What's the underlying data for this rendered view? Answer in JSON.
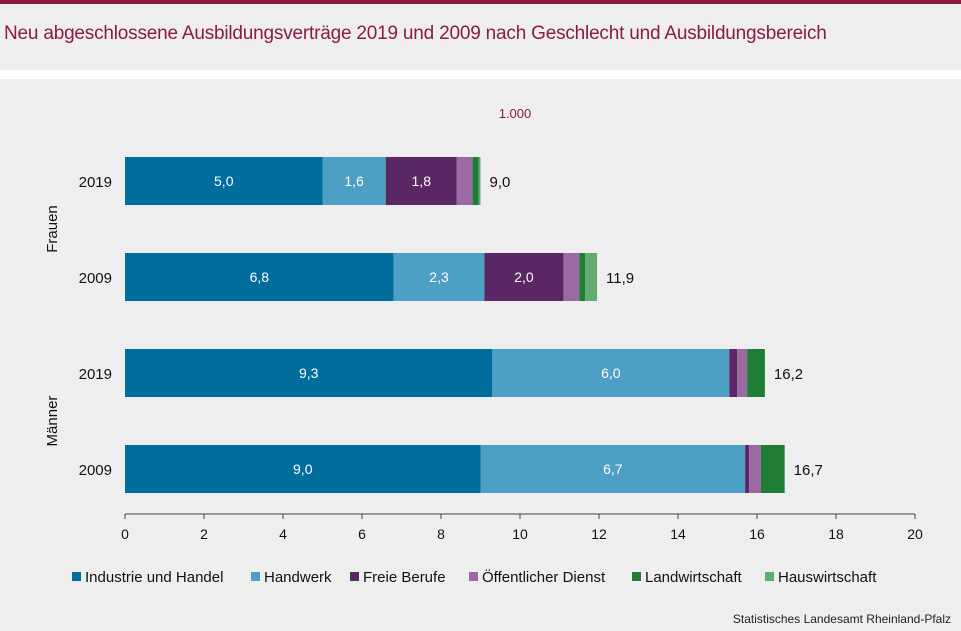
{
  "chart_data": {
    "type": "bar",
    "orientation": "horizontal",
    "stacked": true,
    "title": "Neu abgeschlossene Ausbildungsverträge 2019 und 2009 nach Geschlecht und Ausbildungsbereich",
    "unit_label": "1.000",
    "groups": [
      {
        "label": "Frauen",
        "rows": [
          {
            "label": "2019",
            "total_label": "9,0",
            "values": [
              5.0,
              1.6,
              1.8,
              0.4,
              0.15,
              0.05
            ],
            "value_labels": [
              "5,0",
              "1,6",
              "1,8",
              "",
              "",
              ""
            ]
          },
          {
            "label": "2009",
            "total_label": "11,9",
            "values": [
              6.8,
              2.3,
              2.0,
              0.4,
              0.15,
              0.3
            ],
            "value_labels": [
              "6,8",
              "2,3",
              "2,0",
              "",
              "",
              ""
            ]
          }
        ]
      },
      {
        "label": "Männer",
        "rows": [
          {
            "label": "2019",
            "total_label": "16,2",
            "values": [
              9.3,
              6.0,
              0.2,
              0.25,
              0.45,
              0.0
            ],
            "value_labels": [
              "9,3",
              "6,0",
              "",
              "",
              "",
              ""
            ]
          },
          {
            "label": "2009",
            "total_label": "16,7",
            "values": [
              9.0,
              6.7,
              0.1,
              0.3,
              0.6,
              0.0
            ],
            "value_labels": [
              "9,0",
              "6,7",
              "",
              "",
              "",
              ""
            ]
          }
        ]
      }
    ],
    "series": [
      {
        "name": "Industrie und Handel",
        "color": "#006d9c"
      },
      {
        "name": "Handwerk",
        "color": "#4da0c3"
      },
      {
        "name": "Freie Berufe",
        "color": "#5b2664"
      },
      {
        "name": "Öffentlicher Dienst",
        "color": "#9c6aa2"
      },
      {
        "name": "Landwirtschaft",
        "color": "#1f7d36"
      },
      {
        "name": "Hauswirtschaft",
        "color": "#63ab71"
      }
    ],
    "xlim": [
      0,
      20
    ],
    "xticks": [
      0,
      2,
      4,
      6,
      8,
      10,
      12,
      14,
      16,
      18,
      20
    ],
    "grid": false,
    "legend_position": "bottom"
  },
  "source": "Statistisches Landesamt Rheinland-Pfalz"
}
